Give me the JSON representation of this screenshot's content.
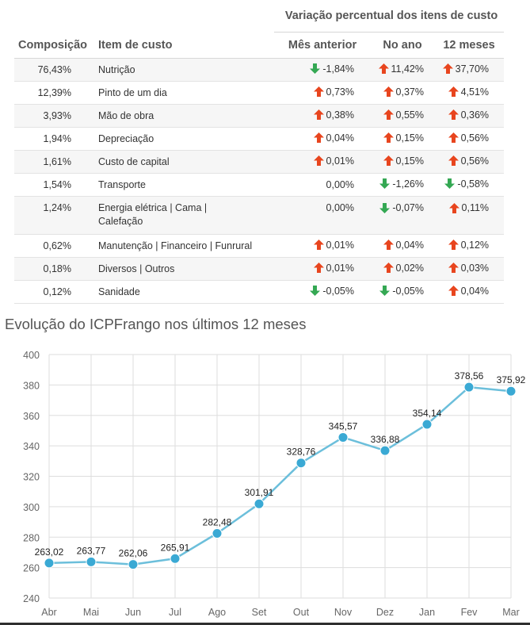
{
  "table": {
    "group_header": "Variação percentual dos itens de custo",
    "columns": [
      "Composição",
      "Item de custo",
      "Mês anterior",
      "No ano",
      "12 meses"
    ],
    "rows": [
      {
        "composicao": "76,43%",
        "item": [
          "Nutrição"
        ],
        "mes": {
          "text": "-1,84%",
          "dir": "down"
        },
        "ano": {
          "text": "11,42%",
          "dir": "up"
        },
        "doze": {
          "text": "37,70%",
          "dir": "up"
        }
      },
      {
        "composicao": "12,39%",
        "item": [
          "Pinto de um dia"
        ],
        "mes": {
          "text": "0,73%",
          "dir": "up"
        },
        "ano": {
          "text": "0,37%",
          "dir": "up"
        },
        "doze": {
          "text": "4,51%",
          "dir": "up"
        }
      },
      {
        "composicao": "3,93%",
        "item": [
          "Mão de obra"
        ],
        "mes": {
          "text": "0,38%",
          "dir": "up"
        },
        "ano": {
          "text": "0,55%",
          "dir": "up"
        },
        "doze": {
          "text": "0,36%",
          "dir": "up"
        }
      },
      {
        "composicao": "1,94%",
        "item": [
          "Depreciação"
        ],
        "mes": {
          "text": "0,04%",
          "dir": "up"
        },
        "ano": {
          "text": "0,15%",
          "dir": "up"
        },
        "doze": {
          "text": "0,56%",
          "dir": "up"
        }
      },
      {
        "composicao": "1,61%",
        "item": [
          "Custo de capital"
        ],
        "mes": {
          "text": "0,01%",
          "dir": "up"
        },
        "ano": {
          "text": "0,15%",
          "dir": "up"
        },
        "doze": {
          "text": "0,56%",
          "dir": "up"
        }
      },
      {
        "composicao": "1,54%",
        "item": [
          "Transporte"
        ],
        "mes": {
          "text": "0,00%",
          "dir": "none"
        },
        "ano": {
          "text": "-1,26%",
          "dir": "down"
        },
        "doze": {
          "text": "-0,58%",
          "dir": "down"
        }
      },
      {
        "composicao": "1,24%",
        "item": [
          "Energia elétrica | Cama |",
          "Calefação"
        ],
        "mes": {
          "text": "0,00%",
          "dir": "none"
        },
        "ano": {
          "text": "-0,07%",
          "dir": "down"
        },
        "doze": {
          "text": "0,11%",
          "dir": "up"
        }
      },
      {
        "composicao": "0,62%",
        "item": [
          "Manutenção | Financeiro | Funrural"
        ],
        "mes": {
          "text": "0,01%",
          "dir": "up"
        },
        "ano": {
          "text": "0,04%",
          "dir": "up"
        },
        "doze": {
          "text": "0,12%",
          "dir": "up"
        }
      },
      {
        "composicao": "0,18%",
        "item": [
          "Diversos | Outros"
        ],
        "mes": {
          "text": "0,01%",
          "dir": "up"
        },
        "ano": {
          "text": "0,02%",
          "dir": "up"
        },
        "doze": {
          "text": "0,03%",
          "dir": "up"
        }
      },
      {
        "composicao": "0,12%",
        "item": [
          "Sanidade"
        ],
        "mes": {
          "text": "-0,05%",
          "dir": "down"
        },
        "ano": {
          "text": "-0,05%",
          "dir": "down"
        },
        "doze": {
          "text": "0,04%",
          "dir": "up"
        }
      }
    ]
  },
  "colors": {
    "up_arrow": "#e8451e",
    "down_arrow": "#34a853",
    "line": "#6cbfdb",
    "marker": "#3aa9d4",
    "grid": "#dddddd"
  },
  "chart_data": {
    "type": "line",
    "title": "Evolução do ICPFrango nos últimos 12 meses",
    "categories": [
      "Abr",
      "Mai",
      "Jun",
      "Jul",
      "Ago",
      "Set",
      "Out",
      "Nov",
      "Dez",
      "Jan",
      "Fev",
      "Mar"
    ],
    "values": [
      263.02,
      263.77,
      262.06,
      265.91,
      282.48,
      301.91,
      328.76,
      345.57,
      336.88,
      354.14,
      378.56,
      375.92
    ],
    "labels": [
      "263,02",
      "263,77",
      "262,06",
      "265,91",
      "282,48",
      "301,91",
      "328,76",
      "345,57",
      "336,88",
      "354,14",
      "378,56",
      "375,92"
    ],
    "ylim": [
      240,
      400
    ],
    "yticks": [
      240,
      260,
      280,
      300,
      320,
      340,
      360,
      380,
      400
    ],
    "xlabel": "",
    "ylabel": "",
    "grid": true
  }
}
